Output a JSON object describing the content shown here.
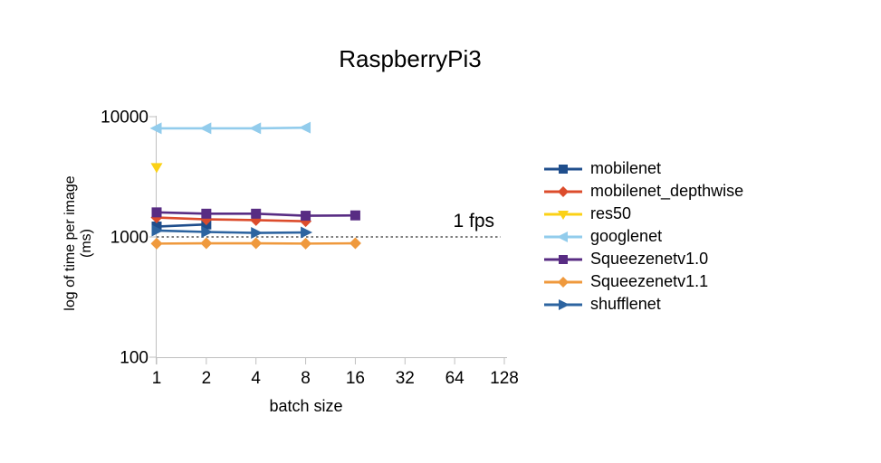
{
  "chart_data": {
    "type": "line",
    "title": "RaspberryPi3",
    "xlabel": "batch size",
    "ylabel": "log of time per image (ms)",
    "ylabel_lines": [
      "log of time per image",
      "(ms)"
    ],
    "x_scale": "log2",
    "y_scale": "log10",
    "xlim": [
      1,
      128
    ],
    "ylim": [
      100,
      10000
    ],
    "x_ticks": [
      1,
      2,
      4,
      8,
      16,
      32,
      64,
      128
    ],
    "y_ticks": [
      10000,
      1000,
      100
    ],
    "grid": false,
    "legend_position": "right",
    "axis_color": "#bfbfbf",
    "annotation": {
      "text": "1 fps",
      "value": 1000,
      "line_style": "dotted",
      "line_color": "#7f7f7f"
    },
    "series": [
      {
        "name": "mobilenet",
        "color": "#1f4e8c",
        "marker": "square",
        "x": [
          1,
          2
        ],
        "y": [
          1220,
          1270
        ]
      },
      {
        "name": "mobilenet_depthwise",
        "color": "#dc4c2c",
        "marker": "diamond",
        "x": [
          1,
          2,
          4,
          8
        ],
        "y": [
          1450,
          1400,
          1380,
          1350
        ]
      },
      {
        "name": "res50",
        "color": "#fbd116",
        "marker": "triangle-down",
        "x": [
          1
        ],
        "y": [
          3800
        ]
      },
      {
        "name": "googlenet",
        "color": "#92ccec",
        "marker": "triangle-left",
        "x": [
          1,
          2,
          4,
          8
        ],
        "y": [
          8000,
          8000,
          8000,
          8100
        ]
      },
      {
        "name": "Squeezenetv1.0",
        "color": "#582c83",
        "marker": "square",
        "x": [
          1,
          2,
          4,
          8,
          16
        ],
        "y": [
          1600,
          1560,
          1560,
          1500,
          1510
        ]
      },
      {
        "name": "Squeezenetv1.1",
        "color": "#ef993d",
        "marker": "diamond",
        "x": [
          1,
          2,
          4,
          8,
          16
        ],
        "y": [
          880,
          885,
          885,
          880,
          885
        ]
      },
      {
        "name": "shufflenet",
        "color": "#2d64a0",
        "marker": "triangle-right",
        "x": [
          1,
          2,
          4,
          8
        ],
        "y": [
          1130,
          1100,
          1080,
          1090
        ]
      }
    ]
  }
}
